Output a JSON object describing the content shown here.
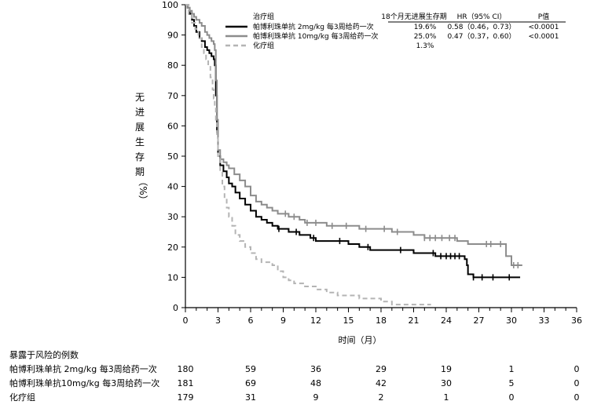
{
  "chart_data": {
    "type": "line",
    "title": "",
    "xlabel": "时间（月）",
    "ylabel": [
      "无",
      "进",
      "展",
      "生",
      "存",
      "期",
      "（%）"
    ],
    "xlim": [
      0,
      36
    ],
    "ylim": [
      0,
      100
    ],
    "xticks": [
      0,
      3,
      6,
      9,
      12,
      15,
      18,
      21,
      24,
      27,
      30,
      33,
      36
    ],
    "yticks": [
      0,
      10,
      20,
      30,
      40,
      50,
      60,
      70,
      80,
      90,
      100
    ],
    "legend": {
      "position": "top-right",
      "title": "治疗组",
      "col_headers": [
        "18个月无进展生存期",
        "HR（95% CI）",
        "P值"
      ],
      "rows": [
        {
          "label": "帕博利珠单抗 2mg/kg 每3周给药一次",
          "pfs18": "19.6%",
          "hr": "0.58（0.46，0.73）",
          "p": "<0.0001",
          "color": "#000000",
          "style": "solid"
        },
        {
          "label": "帕博利珠单抗 10mg/kg 每3周给药一次",
          "pfs18": "25.0%",
          "hr": "0.47（0.37，0.60）",
          "p": "<0.0001",
          "color": "#8c8c8c",
          "style": "solid"
        },
        {
          "label": "化疗组",
          "pfs18": "1.3%",
          "hr": "",
          "p": "",
          "color": "#b4b4b4",
          "style": "dashed"
        }
      ]
    },
    "series": [
      {
        "name": "帕博利珠单抗 2mg/kg 每3周给药一次",
        "color": "#000000",
        "x": [
          0,
          0.2,
          0.4,
          0.6,
          0.8,
          1.0,
          1.3,
          1.5,
          1.8,
          2.0,
          2.2,
          2.4,
          2.6,
          2.7,
          2.8,
          2.9,
          3.0,
          3.2,
          3.5,
          3.8,
          4.0,
          4.3,
          4.6,
          5.0,
          5.5,
          6.0,
          6.5,
          7.0,
          7.5,
          8.0,
          8.5,
          9.0,
          9.5,
          10.0,
          10.5,
          11.0,
          11.5,
          12.0,
          13.0,
          14.0,
          15.0,
          16.0,
          16.5,
          17.0,
          18.0,
          18.5,
          19.0,
          20.0,
          21.0,
          22.0,
          23.0,
          24.0,
          25.0,
          25.5,
          25.7,
          25.9,
          26.0,
          26.5,
          27.0,
          28.0,
          29.0,
          30.0,
          30.8
        ],
        "y": [
          100,
          99,
          97,
          95,
          93,
          91,
          89,
          88,
          86,
          85,
          84,
          83,
          82,
          80,
          70,
          58,
          50,
          47,
          45,
          43,
          41,
          40,
          38,
          36,
          34,
          32,
          30,
          29,
          28,
          27,
          26,
          26,
          25,
          25,
          24,
          24,
          23,
          22,
          22,
          22,
          21,
          20,
          20,
          19,
          19,
          19,
          19,
          19,
          18,
          18,
          17,
          17,
          17,
          17,
          16,
          14,
          11,
          10,
          10,
          10,
          10,
          10,
          10
        ],
        "censor_x": [
          8.6,
          10.2,
          11.8,
          14.2,
          16.8,
          19.8,
          22.8,
          23.5,
          24.0,
          24.4,
          24.8,
          25.2,
          26.5,
          27.3,
          28.3,
          29.8
        ]
      },
      {
        "name": "帕博利珠单抗 10mg/kg 每3周给药一次",
        "color": "#8c8c8c",
        "x": [
          0,
          0.2,
          0.4,
          0.6,
          0.8,
          1.0,
          1.3,
          1.5,
          1.8,
          2.0,
          2.2,
          2.4,
          2.6,
          2.7,
          2.8,
          2.9,
          3.0,
          3.2,
          3.5,
          3.8,
          4.0,
          4.5,
          5.0,
          5.5,
          6.0,
          6.5,
          7.0,
          7.5,
          8.0,
          8.5,
          9.0,
          9.5,
          10.0,
          10.5,
          11.0,
          12.0,
          13.0,
          14.0,
          15.0,
          16.0,
          17.0,
          18.0,
          19.0,
          20.0,
          21.0,
          22.0,
          23.0,
          24.0,
          24.5,
          25.0,
          26.0,
          27.0,
          28.0,
          29.0,
          29.5,
          30.0,
          30.5,
          31.0
        ],
        "y": [
          100,
          99,
          98,
          97,
          96,
          95,
          94,
          93,
          91,
          90,
          89,
          88,
          87,
          85,
          75,
          62,
          52,
          49,
          48,
          47,
          46,
          44,
          42,
          40,
          37,
          35,
          34,
          33,
          32,
          31,
          31,
          30,
          30,
          29,
          28,
          28,
          27,
          27,
          27,
          26,
          26,
          26,
          25,
          25,
          24,
          23,
          23,
          23,
          23,
          22,
          21,
          21,
          21,
          21,
          17,
          14,
          14,
          14
        ],
        "censor_x": [
          9.2,
          10.0,
          11.2,
          12.0,
          13.5,
          14.8,
          16.6,
          18.3,
          19.5,
          22.0,
          22.5,
          23.0,
          23.6,
          24.3,
          24.8,
          27.7,
          28.1,
          29.0,
          30.2,
          30.6
        ]
      },
      {
        "name": "化疗组",
        "color": "#b4b4b4",
        "x": [
          0,
          0.3,
          0.6,
          0.9,
          1.2,
          1.5,
          1.7,
          1.9,
          2.1,
          2.3,
          2.5,
          2.6,
          2.7,
          2.8,
          2.9,
          3.0,
          3.2,
          3.4,
          3.6,
          3.8,
          4.0,
          4.3,
          4.6,
          5.0,
          5.5,
          6.0,
          6.5,
          7.0,
          8.0,
          8.5,
          9.0,
          9.5,
          10.0,
          10.5,
          11.0,
          12.0,
          13.0,
          14.0,
          15.0,
          16.0,
          17.0,
          18.0,
          19.0,
          20.0,
          21.0,
          22.0,
          22.6
        ],
        "y": [
          100,
          97,
          94,
          92,
          89,
          86,
          84,
          82,
          80,
          76,
          72,
          69,
          66,
          62,
          56,
          50,
          45,
          40,
          36,
          33,
          30,
          27,
          24,
          22,
          20,
          18,
          16,
          15,
          14,
          12,
          10,
          9,
          8,
          8,
          7,
          6,
          5,
          4,
          4,
          3,
          3,
          2,
          1,
          1,
          1,
          1,
          1
        ],
        "censor_x": []
      }
    ],
    "risk_table": {
      "title": "暴露于风险的例数",
      "times": [
        0,
        6,
        12,
        18,
        24,
        30,
        36
      ],
      "rows": [
        {
          "label": "帕博利珠单抗 2mg/kg 每3周给药一次",
          "counts": [
            "180",
            "59",
            "36",
            "29",
            "19",
            "1",
            "0"
          ]
        },
        {
          "label": "帕博利珠单抗10mg/kg 每3周给药一次",
          "counts": [
            "181",
            "69",
            "48",
            "42",
            "30",
            "5",
            "0"
          ]
        },
        {
          "label": "化疗组",
          "counts": [
            "179",
            "31",
            "9",
            "2",
            "1",
            "0",
            "0"
          ]
        }
      ]
    }
  }
}
